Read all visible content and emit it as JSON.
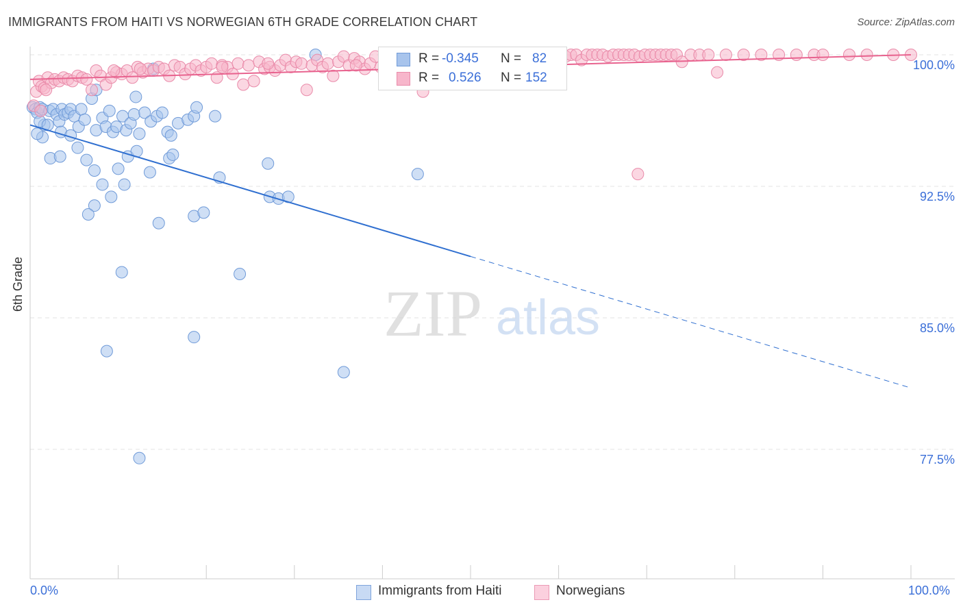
{
  "title": "IMMIGRANTS FROM HAITI VS NORWEGIAN 6TH GRADE CORRELATION CHART",
  "source": "Source: ZipAtlas.com",
  "watermark": {
    "zip": "ZIP",
    "atlas": "atlas"
  },
  "chart_data": {
    "type": "scatter",
    "xlabel": "",
    "ylabel": "6th Grade",
    "xlim": [
      0,
      100
    ],
    "ylim": [
      70,
      101.2
    ],
    "x_tick_labels": [
      "0.0%",
      "100.0%"
    ],
    "y_ticks": [
      77.5,
      85.0,
      92.5,
      100.0
    ],
    "y_tick_labels": [
      "77.5%",
      "85.0%",
      "92.5%",
      "100.0%"
    ],
    "legend": [
      {
        "r_label": "R =",
        "r_value": "-0.345",
        "n_label": "N =",
        "n_value": "82"
      },
      {
        "r_label": "R =",
        "r_value": "0.526",
        "n_label": "N =",
        "n_value": "152"
      }
    ],
    "series": [
      {
        "name": "Immigrants from Haiti",
        "color": "#a8c4ec",
        "stroke": "#6f9ad8",
        "trend": {
          "x0": 0,
          "y0": 96.0,
          "x1": 50,
          "y1": 88.5,
          "dash_to_x": 100,
          "dash_to_y": 81.0,
          "color": "#2f6fd0"
        },
        "points": [
          [
            0.3,
            97.0
          ],
          [
            0.6,
            96.9
          ],
          [
            0.8,
            96.7
          ],
          [
            1.1,
            97.0
          ],
          [
            1.4,
            96.9
          ],
          [
            1.6,
            96.0
          ],
          [
            1.4,
            95.3
          ],
          [
            2.2,
            96.8
          ],
          [
            2.6,
            96.9
          ],
          [
            3.0,
            96.6
          ],
          [
            3.3,
            96.2
          ],
          [
            3.6,
            96.9
          ],
          [
            3.9,
            96.6
          ],
          [
            4.3,
            96.7
          ],
          [
            4.6,
            96.9
          ],
          [
            5.0,
            96.5
          ],
          [
            3.5,
            95.6
          ],
          [
            4.6,
            95.4
          ],
          [
            5.5,
            95.9
          ],
          [
            5.8,
            96.9
          ],
          [
            6.2,
            96.3
          ],
          [
            7.0,
            97.5
          ],
          [
            7.5,
            95.7
          ],
          [
            8.2,
            96.4
          ],
          [
            8.6,
            95.9
          ],
          [
            9.0,
            96.8
          ],
          [
            9.4,
            95.6
          ],
          [
            9.8,
            95.9
          ],
          [
            10.5,
            96.5
          ],
          [
            10.9,
            95.7
          ],
          [
            11.4,
            96.1
          ],
          [
            11.8,
            96.6
          ],
          [
            12.4,
            95.5
          ],
          [
            13.0,
            96.7
          ],
          [
            13.7,
            96.2
          ],
          [
            14.4,
            96.5
          ],
          [
            15.0,
            96.7
          ],
          [
            15.6,
            95.6
          ],
          [
            16.0,
            95.4
          ],
          [
            16.8,
            96.1
          ],
          [
            17.9,
            96.3
          ],
          [
            18.6,
            96.5
          ],
          [
            18.9,
            97.0
          ],
          [
            12.0,
            97.6
          ],
          [
            7.5,
            98.0
          ],
          [
            2.3,
            94.1
          ],
          [
            3.4,
            94.2
          ],
          [
            5.4,
            94.7
          ],
          [
            6.4,
            94.0
          ],
          [
            7.3,
            93.4
          ],
          [
            8.2,
            92.6
          ],
          [
            9.2,
            91.9
          ],
          [
            7.3,
            91.4
          ],
          [
            6.6,
            90.9
          ],
          [
            10.0,
            93.5
          ],
          [
            10.7,
            92.6
          ],
          [
            11.1,
            94.2
          ],
          [
            12.1,
            94.5
          ],
          [
            13.6,
            93.3
          ],
          [
            15.8,
            94.1
          ],
          [
            16.2,
            94.3
          ],
          [
            18.6,
            90.8
          ],
          [
            19.7,
            91.0
          ],
          [
            21.5,
            93.0
          ],
          [
            27.0,
            93.8
          ],
          [
            27.2,
            91.9
          ],
          [
            28.2,
            91.8
          ],
          [
            29.3,
            91.9
          ],
          [
            14.6,
            90.4
          ],
          [
            10.4,
            87.6
          ],
          [
            23.8,
            87.5
          ],
          [
            18.6,
            83.9
          ],
          [
            8.7,
            83.1
          ],
          [
            35.6,
            81.9
          ],
          [
            12.4,
            77.0
          ],
          [
            32.4,
            100.0
          ],
          [
            44.0,
            93.2
          ],
          [
            1.1,
            96.2
          ],
          [
            0.8,
            95.5
          ],
          [
            2.0,
            96.0
          ],
          [
            14.0,
            99.2
          ],
          [
            21.0,
            96.5
          ]
        ]
      },
      {
        "name": "Norwegians",
        "color": "#f7b6cb",
        "stroke": "#e98aa9",
        "trend": {
          "x0": 0,
          "y0": 98.6,
          "x1": 100,
          "y1": 100.0,
          "color": "#e8628e"
        },
        "points": [
          [
            0.4,
            97.1
          ],
          [
            0.7,
            97.9
          ],
          [
            1.0,
            98.5
          ],
          [
            1.3,
            98.2
          ],
          [
            1.6,
            98.1
          ],
          [
            2.0,
            98.7
          ],
          [
            2.4,
            98.4
          ],
          [
            2.8,
            98.6
          ],
          [
            3.3,
            98.5
          ],
          [
            3.8,
            98.7
          ],
          [
            4.3,
            98.6
          ],
          [
            4.8,
            98.5
          ],
          [
            5.4,
            98.8
          ],
          [
            5.9,
            98.7
          ],
          [
            6.4,
            98.6
          ],
          [
            7.0,
            98.0
          ],
          [
            7.5,
            99.1
          ],
          [
            8.0,
            98.8
          ],
          [
            8.6,
            98.3
          ],
          [
            9.2,
            98.7
          ],
          [
            9.8,
            99.0
          ],
          [
            10.4,
            98.9
          ],
          [
            11.0,
            99.1
          ],
          [
            11.6,
            98.7
          ],
          [
            12.2,
            99.3
          ],
          [
            12.8,
            99.0
          ],
          [
            13.4,
            99.2
          ],
          [
            14.0,
            99.1
          ],
          [
            14.6,
            99.3
          ],
          [
            15.2,
            99.2
          ],
          [
            15.8,
            98.8
          ],
          [
            16.4,
            99.4
          ],
          [
            17.0,
            99.3
          ],
          [
            17.6,
            98.9
          ],
          [
            18.2,
            99.2
          ],
          [
            18.8,
            99.4
          ],
          [
            19.4,
            99.1
          ],
          [
            20.0,
            99.3
          ],
          [
            20.6,
            99.5
          ],
          [
            21.2,
            98.7
          ],
          [
            21.8,
            99.4
          ],
          [
            22.4,
            99.3
          ],
          [
            23.0,
            98.9
          ],
          [
            23.6,
            99.5
          ],
          [
            24.2,
            98.3
          ],
          [
            24.8,
            99.4
          ],
          [
            25.4,
            98.5
          ],
          [
            26.0,
            99.6
          ],
          [
            26.6,
            99.2
          ],
          [
            27.2,
            99.3
          ],
          [
            27.8,
            99.1
          ],
          [
            28.4,
            99.4
          ],
          [
            29.0,
            99.7
          ],
          [
            29.6,
            99.3
          ],
          [
            30.2,
            99.6
          ],
          [
            30.8,
            99.5
          ],
          [
            31.4,
            98.0
          ],
          [
            32.0,
            99.4
          ],
          [
            32.6,
            99.7
          ],
          [
            33.2,
            99.3
          ],
          [
            33.8,
            99.5
          ],
          [
            34.4,
            98.8
          ],
          [
            35.0,
            99.6
          ],
          [
            35.6,
            99.9
          ],
          [
            36.2,
            99.4
          ],
          [
            36.8,
            99.8
          ],
          [
            37.4,
            99.6
          ],
          [
            38.0,
            99.2
          ],
          [
            38.6,
            99.5
          ],
          [
            39.2,
            99.9
          ],
          [
            39.8,
            99.3
          ],
          [
            40.4,
            99.6
          ],
          [
            41.0,
            99.9
          ],
          [
            41.6,
            99.2
          ],
          [
            42.2,
            99.8
          ],
          [
            42.8,
            99.5
          ],
          [
            43.4,
            99.9
          ],
          [
            44.0,
            99.7
          ],
          [
            44.6,
            97.9
          ],
          [
            45.2,
            99.8
          ],
          [
            45.8,
            100.0
          ],
          [
            46.4,
            99.7
          ],
          [
            47.0,
            99.9
          ],
          [
            47.6,
            100.0
          ],
          [
            48.2,
            99.5
          ],
          [
            48.8,
            99.8
          ],
          [
            49.4,
            100.0
          ],
          [
            50.0,
            99.7
          ],
          [
            50.6,
            99.9
          ],
          [
            51.2,
            100.0
          ],
          [
            51.8,
            99.8
          ],
          [
            52.4,
            100.0
          ],
          [
            53.0,
            99.7
          ],
          [
            53.6,
            100.0
          ],
          [
            54.2,
            99.9
          ],
          [
            54.8,
            100.0
          ],
          [
            55.4,
            99.8
          ],
          [
            56.0,
            100.0
          ],
          [
            56.6,
            100.0
          ],
          [
            57.2,
            99.9
          ],
          [
            57.8,
            100.0
          ],
          [
            58.4,
            100.0
          ],
          [
            59.0,
            99.8
          ],
          [
            59.6,
            100.0
          ],
          [
            60.2,
            100.0
          ],
          [
            60.8,
            99.9
          ],
          [
            61.4,
            100.0
          ],
          [
            62.0,
            100.0
          ],
          [
            62.6,
            99.7
          ],
          [
            63.2,
            100.0
          ],
          [
            63.8,
            100.0
          ],
          [
            64.4,
            100.0
          ],
          [
            65.0,
            100.0
          ],
          [
            65.6,
            99.9
          ],
          [
            66.2,
            100.0
          ],
          [
            66.8,
            100.0
          ],
          [
            67.4,
            100.0
          ],
          [
            68.0,
            100.0
          ],
          [
            68.6,
            100.0
          ],
          [
            69.2,
            99.9
          ],
          [
            69.8,
            100.0
          ],
          [
            70.4,
            100.0
          ],
          [
            71.0,
            100.0
          ],
          [
            71.6,
            100.0
          ],
          [
            72.2,
            100.0
          ],
          [
            72.8,
            100.0
          ],
          [
            73.4,
            100.0
          ],
          [
            74.0,
            99.6
          ],
          [
            75.0,
            100.0
          ],
          [
            76.0,
            100.0
          ],
          [
            77.0,
            100.0
          ],
          [
            78.0,
            99.0
          ],
          [
            79.0,
            100.0
          ],
          [
            81.0,
            100.0
          ],
          [
            83.0,
            100.0
          ],
          [
            85.0,
            100.0
          ],
          [
            87.0,
            100.0
          ],
          [
            89.0,
            100.0
          ],
          [
            90.0,
            100.0
          ],
          [
            93.0,
            100.0
          ],
          [
            95.0,
            100.0
          ],
          [
            98.0,
            100.0
          ],
          [
            100.0,
            100.0
          ],
          [
            1.2,
            96.8
          ],
          [
            1.8,
            98.0
          ],
          [
            69.0,
            93.2
          ],
          [
            9.5,
            99.1
          ],
          [
            21.8,
            99.3
          ],
          [
            57.8,
            99.9
          ],
          [
            37.0,
            99.4
          ],
          [
            12.5,
            99.2
          ],
          [
            27.0,
            99.5
          ]
        ]
      }
    ]
  }
}
